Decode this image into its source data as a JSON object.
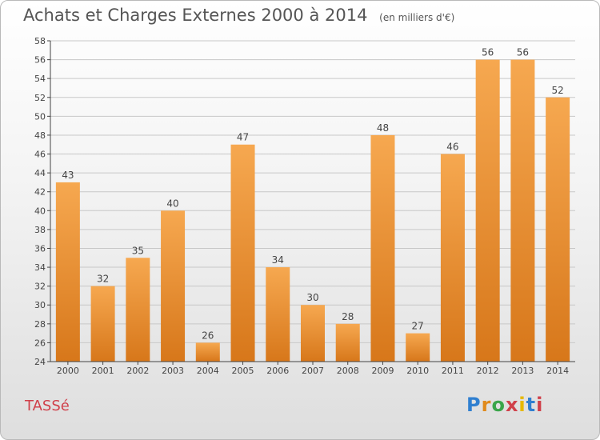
{
  "header": {
    "title": "Achats et Charges Externes 2000 à 2014",
    "subtitle": "(en milliers d'€)"
  },
  "footer": {
    "town": "TASSé",
    "logo": "Proxiti",
    "logo_colors": [
      "#2f7fd0",
      "#e08a1c",
      "#3aa54a",
      "#d0404a",
      "#e6b800",
      "#2f7fd0",
      "#d0404a"
    ]
  },
  "colors": {
    "bar_light": "#f6a850",
    "bar_dark": "#d7771a",
    "grid": "#c8c8c8",
    "axis": "#444444",
    "text": "#444444"
  },
  "chart_data": {
    "type": "bar",
    "categories": [
      "2000",
      "2001",
      "2002",
      "2003",
      "2004",
      "2005",
      "2006",
      "2007",
      "2008",
      "2009",
      "2010",
      "2011",
      "2012",
      "2013",
      "2014"
    ],
    "values": [
      43,
      32,
      35,
      40,
      26,
      47,
      34,
      30,
      28,
      48,
      27,
      46,
      56,
      56,
      52
    ],
    "title": "Achats et Charges Externes 2000 à 2014",
    "subtitle": "(en milliers d'€)",
    "xlabel": "",
    "ylabel": "",
    "ylim": [
      24,
      58
    ],
    "yticks": [
      24,
      26,
      28,
      30,
      32,
      34,
      36,
      38,
      40,
      42,
      44,
      46,
      48,
      50,
      52,
      54,
      56,
      58
    ],
    "grid": true,
    "data_labels": true
  }
}
